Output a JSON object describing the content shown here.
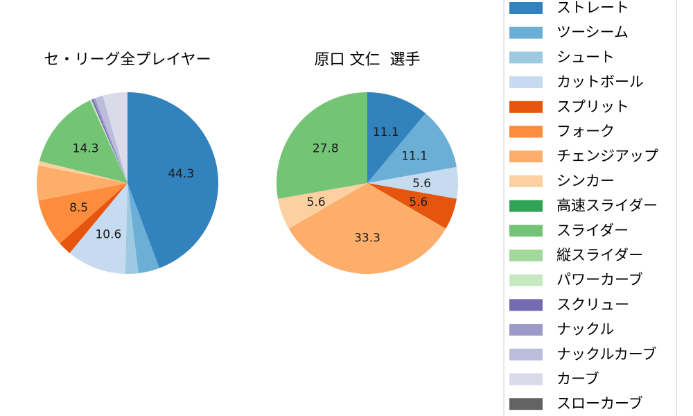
{
  "legend": {
    "location": "right",
    "entries": [
      {
        "name": "ストレート",
        "color": "#3182bd"
      },
      {
        "name": "ツーシーム",
        "color": "#6baed6"
      },
      {
        "name": "シュート",
        "color": "#9ecae1"
      },
      {
        "name": "カットボール",
        "color": "#c6dbef"
      },
      {
        "name": "スプリット",
        "color": "#e6550d"
      },
      {
        "name": "フォーク",
        "color": "#fd8d3c"
      },
      {
        "name": "チェンジアップ",
        "color": "#fdae6b"
      },
      {
        "name": "シンカー",
        "color": "#fdd0a2"
      },
      {
        "name": "高速スライダー",
        "color": "#31a354"
      },
      {
        "name": "スライダー",
        "color": "#74c476"
      },
      {
        "name": "縦スライダー",
        "color": "#a1d99b"
      },
      {
        "name": "パワーカーブ",
        "color": "#c7e9c0"
      },
      {
        "name": "スクリュー",
        "color": "#756bb1"
      },
      {
        "name": "ナックル",
        "color": "#9e9ac8"
      },
      {
        "name": "ナックルカーブ",
        "color": "#bcbddc"
      },
      {
        "name": "カーブ",
        "color": "#dadaeb"
      },
      {
        "name": "スローカーブ",
        "color": "#636363"
      }
    ]
  },
  "chart_data": [
    {
      "type": "pie",
      "title": "セ・リーグ全プレイヤー",
      "start_angle_deg": 90,
      "direction": "clockwise",
      "slices": [
        {
          "label": "ストレート",
          "value": 44.3,
          "shown": "44.3"
        },
        {
          "label": "ツーシーム",
          "value": 3.8,
          "shown": ""
        },
        {
          "label": "シュート",
          "value": 2.3,
          "shown": ""
        },
        {
          "label": "カットボール",
          "value": 10.6,
          "shown": "10.6"
        },
        {
          "label": "スプリット",
          "value": 2.4,
          "shown": ""
        },
        {
          "label": "フォーク",
          "value": 8.5,
          "shown": "8.5"
        },
        {
          "label": "チェンジアップ",
          "value": 6.2,
          "shown": ""
        },
        {
          "label": "シンカー",
          "value": 0.8,
          "shown": ""
        },
        {
          "label": "高速スライダー",
          "value": 0.0,
          "shown": ""
        },
        {
          "label": "スライダー",
          "value": 14.3,
          "shown": "14.3"
        },
        {
          "label": "縦スライダー",
          "value": 0.0,
          "shown": ""
        },
        {
          "label": "パワーカーブ",
          "value": 0.3,
          "shown": ""
        },
        {
          "label": "スクリュー",
          "value": 0.3,
          "shown": ""
        },
        {
          "label": "ナックル",
          "value": 0.4,
          "shown": ""
        },
        {
          "label": "ナックルカーブ",
          "value": 1.4,
          "shown": ""
        },
        {
          "label": "カーブ",
          "value": 4.4,
          "shown": ""
        },
        {
          "label": "スローカーブ",
          "value": 0.0,
          "shown": ""
        }
      ]
    },
    {
      "type": "pie",
      "title": "原口 文仁  選手",
      "start_angle_deg": 90,
      "direction": "clockwise",
      "slices": [
        {
          "label": "ストレート",
          "value": 11.1,
          "shown": "11.1"
        },
        {
          "label": "ツーシーム",
          "value": 11.1,
          "shown": "11.1"
        },
        {
          "label": "カットボール",
          "value": 5.6,
          "shown": "5.6"
        },
        {
          "label": "スプリット",
          "value": 5.6,
          "shown": "5.6"
        },
        {
          "label": "チェンジアップ",
          "value": 33.3,
          "shown": "33.3"
        },
        {
          "label": "シンカー",
          "value": 5.6,
          "shown": "5.6"
        },
        {
          "label": "スライダー",
          "value": 27.8,
          "shown": "27.8"
        }
      ]
    }
  ]
}
